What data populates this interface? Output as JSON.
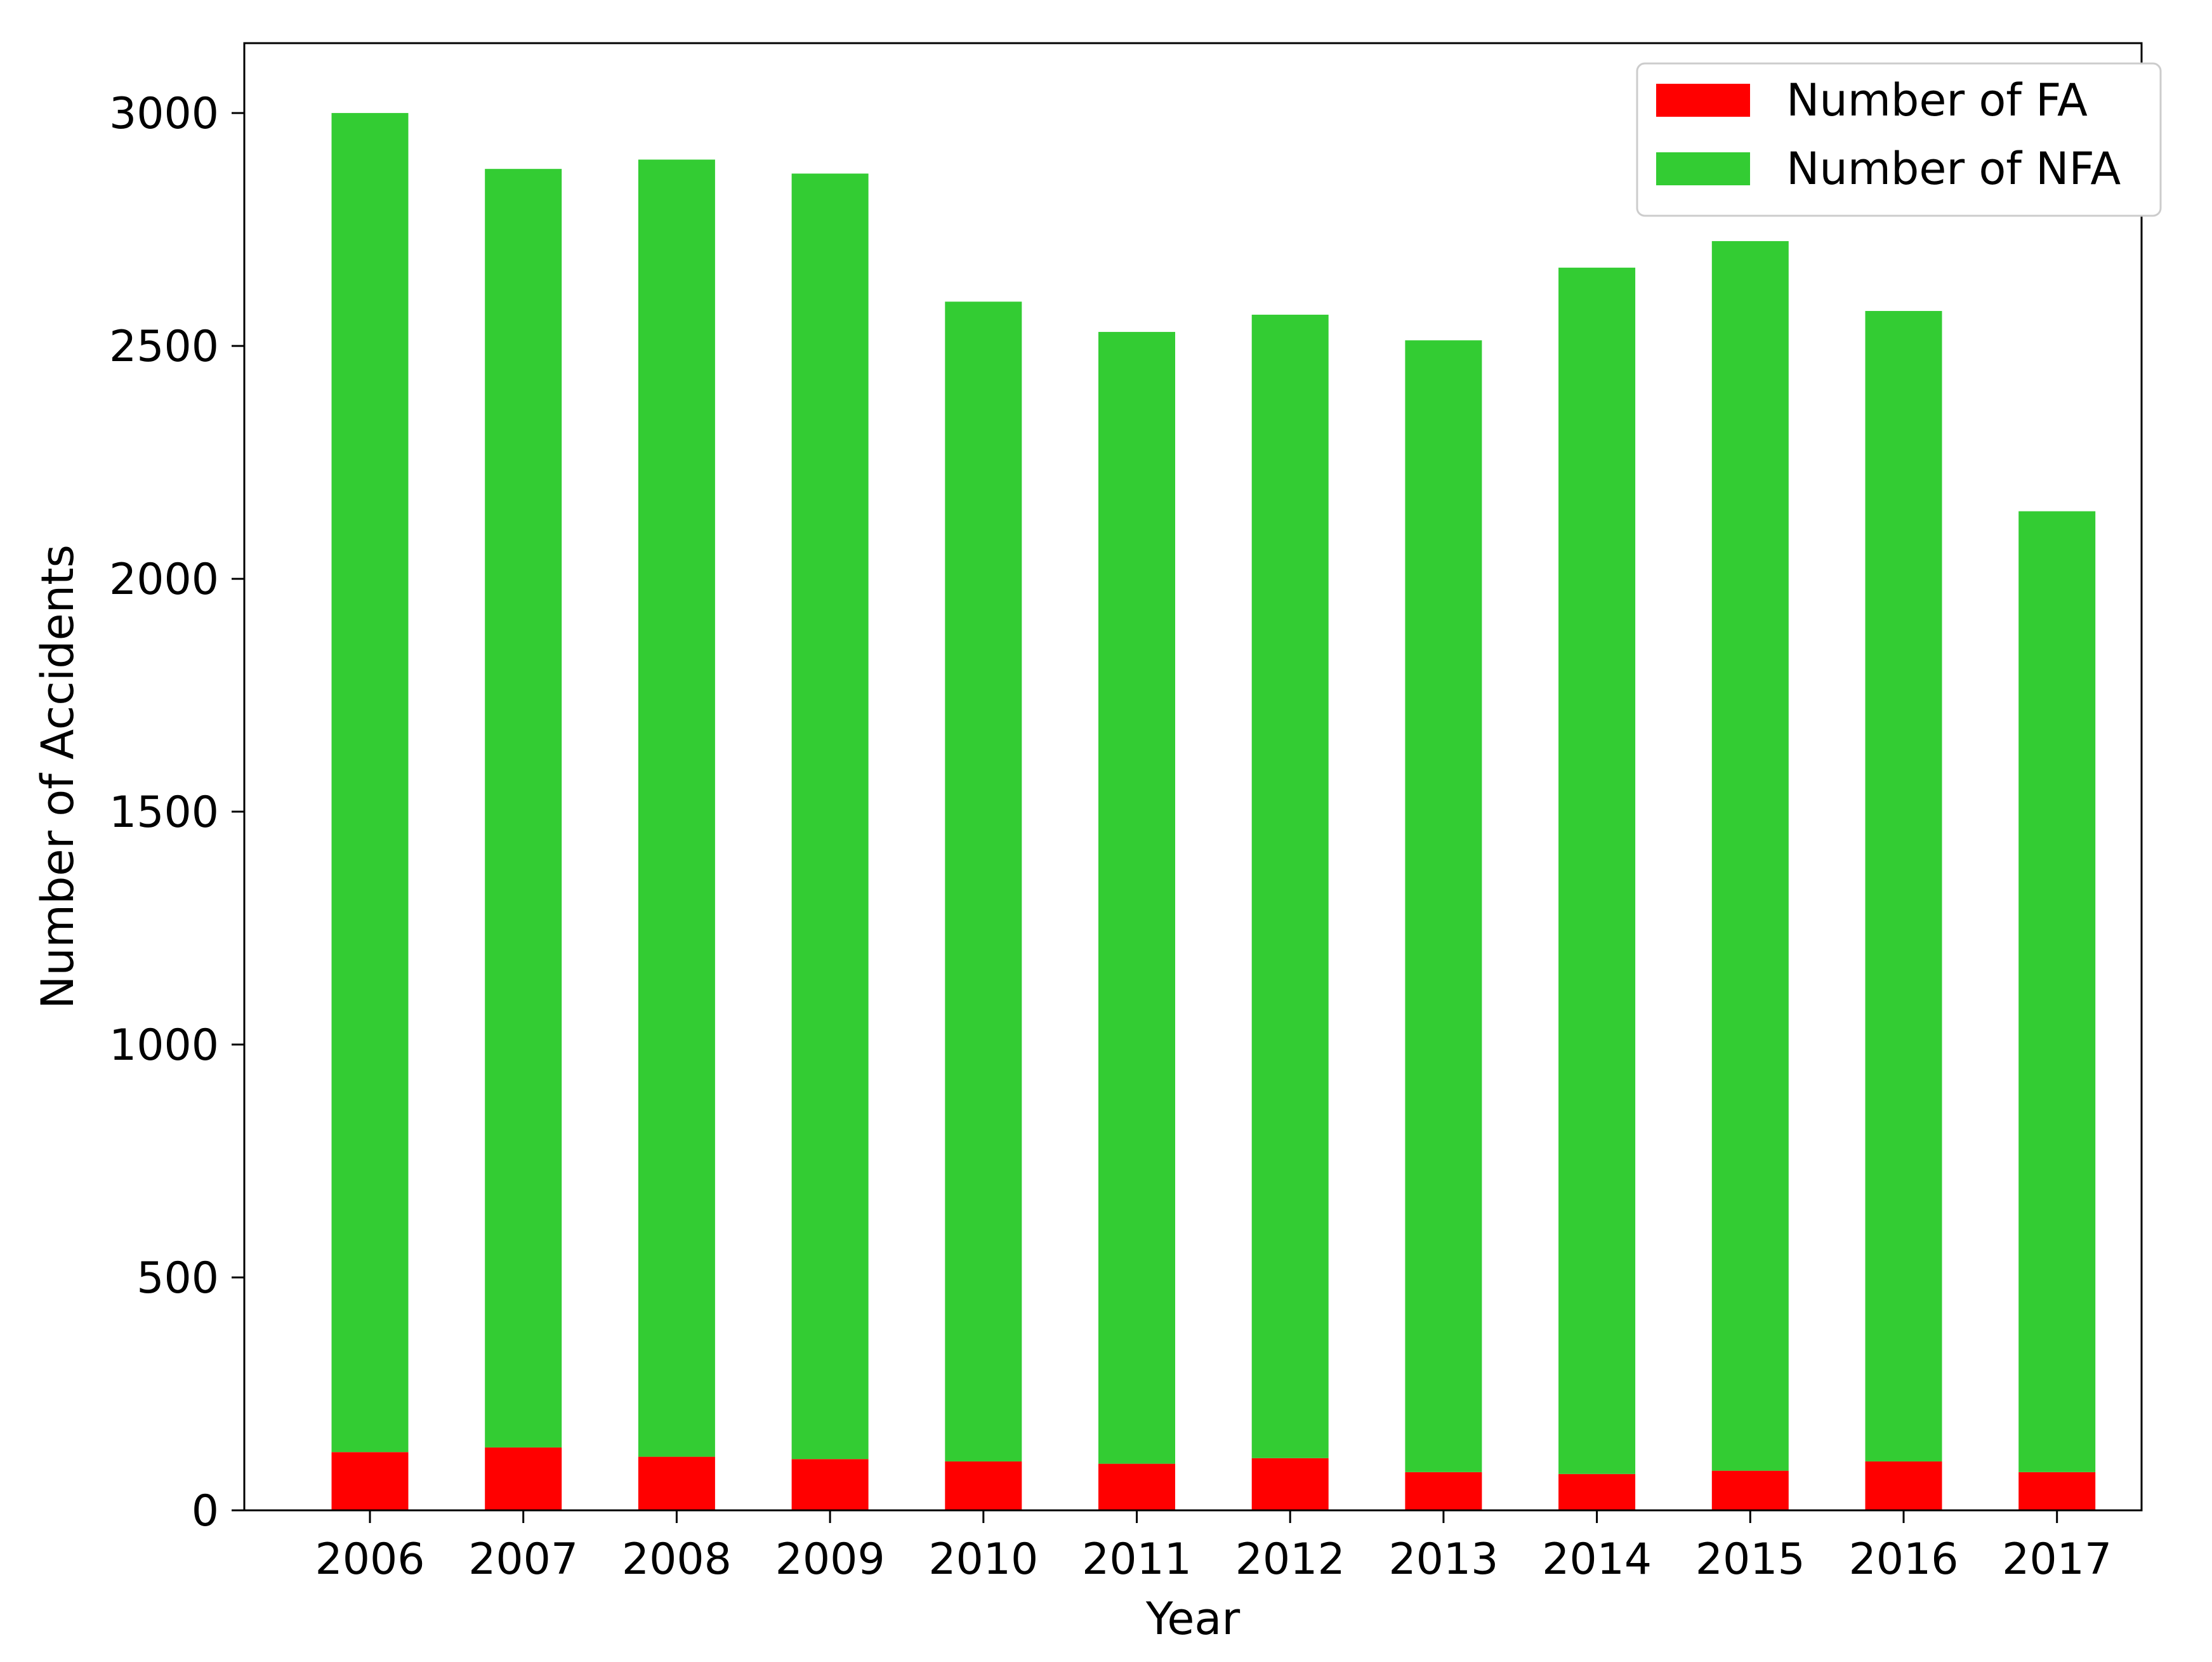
{
  "chart_data": {
    "type": "bar",
    "stacked": true,
    "categories": [
      "2006",
      "2007",
      "2008",
      "2009",
      "2010",
      "2011",
      "2012",
      "2013",
      "2014",
      "2015",
      "2016",
      "2017"
    ],
    "series": [
      {
        "name": "Number of FA",
        "color": "#ff0000",
        "values": [
          125,
          135,
          115,
          110,
          105,
          100,
          112,
          82,
          78,
          85,
          105,
          82
        ]
      },
      {
        "name": "Number of NFA",
        "color": "#33cc33",
        "values": [
          2875,
          2745,
          2785,
          2760,
          2490,
          2430,
          2455,
          2430,
          2590,
          2640,
          2470,
          2063
        ]
      }
    ],
    "xlabel": "Year",
    "ylabel": "Number of Accidents",
    "ylim": [
      0,
      3150
    ],
    "yticks": [
      0,
      500,
      1000,
      1500,
      2000,
      2500,
      3000
    ],
    "grid": false,
    "legend_position": "top-right"
  }
}
